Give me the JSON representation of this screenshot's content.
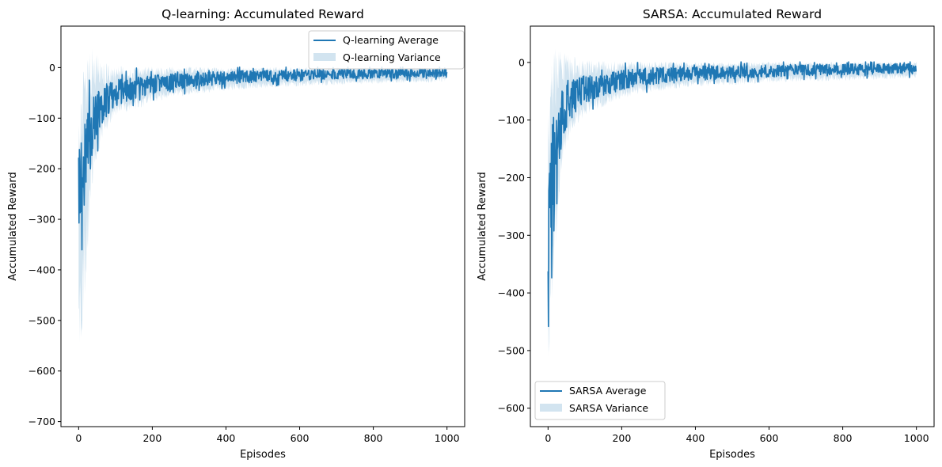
{
  "chart_data": [
    {
      "type": "line",
      "title": "Q-learning: Accumulated Reward",
      "xlabel": "Episodes",
      "ylabel": "Accumulated Reward",
      "xlim": [
        -48,
        1048
      ],
      "ylim": [
        -710,
        82
      ],
      "xticks": [
        0,
        200,
        400,
        600,
        800,
        1000
      ],
      "yticks": [
        0,
        -100,
        -200,
        -300,
        -400,
        -500,
        -600,
        -700
      ],
      "legend_position": "upper right",
      "color": "#1f77b4",
      "band_color": "#1f77b4",
      "series": [
        {
          "name": "Q-learning Average",
          "x": [
            0,
            5,
            10,
            15,
            20,
            25,
            30,
            35,
            40,
            50,
            60,
            70,
            80,
            90,
            100,
            125,
            150,
            175,
            200,
            250,
            300,
            350,
            400,
            450,
            500,
            550,
            600,
            650,
            700,
            750,
            800,
            850,
            900,
            950,
            1000
          ],
          "y": [
            -320,
            -270,
            -240,
            -210,
            -190,
            -170,
            -150,
            -130,
            -110,
            -95,
            -80,
            -70,
            -62,
            -55,
            -50,
            -45,
            -40,
            -36,
            -33,
            -28,
            -25,
            -22,
            -20,
            -18,
            -17,
            -16,
            -15,
            -14,
            -13,
            -13,
            -12,
            -12,
            -11,
            -11,
            -10
          ],
          "band_low": [
            -630,
            -560,
            -520,
            -470,
            -420,
            -360,
            -300,
            -260,
            -210,
            -180,
            -150,
            -135,
            -120,
            -110,
            -100,
            -92,
            -85,
            -78,
            -70,
            -60,
            -55,
            -50,
            -46,
            -44,
            -42,
            -40,
            -38,
            -36,
            -35,
            -34,
            -33,
            -32,
            -31,
            -30,
            -28
          ],
          "band_high": [
            -120,
            -50,
            -10,
            15,
            30,
            35,
            40,
            40,
            35,
            25,
            15,
            10,
            8,
            5,
            3,
            3,
            2,
            2,
            2,
            2,
            2,
            1,
            1,
            1,
            1,
            1,
            1,
            1,
            1,
            1,
            1,
            1,
            1,
            1,
            1
          ]
        },
        {
          "name": "Q-learning Variance"
        }
      ]
    },
    {
      "type": "line",
      "title": "SARSA: Accumulated Reward",
      "xlabel": "Episodes",
      "ylabel": "Accumulated Reward",
      "xlim": [
        -48,
        1048
      ],
      "ylim": [
        -632,
        63
      ],
      "xticks": [
        0,
        200,
        400,
        600,
        800,
        1000
      ],
      "yticks": [
        0,
        -100,
        -200,
        -300,
        -400,
        -500,
        -600
      ],
      "legend_position": "lower left",
      "color": "#1f77b4",
      "band_color": "#1f77b4",
      "series": [
        {
          "name": "SARSA Average",
          "x": [
            0,
            5,
            10,
            15,
            20,
            25,
            30,
            35,
            40,
            50,
            60,
            70,
            80,
            90,
            100,
            125,
            150,
            175,
            200,
            250,
            300,
            350,
            400,
            450,
            500,
            550,
            600,
            650,
            700,
            750,
            800,
            850,
            900,
            950,
            1000
          ],
          "y": [
            -330,
            -250,
            -210,
            -180,
            -160,
            -140,
            -120,
            -100,
            -90,
            -78,
            -68,
            -60,
            -54,
            -50,
            -46,
            -42,
            -38,
            -34,
            -31,
            -26,
            -23,
            -21,
            -19,
            -18,
            -17,
            -16,
            -15,
            -14,
            -13,
            -13,
            -12,
            -12,
            -11,
            -11,
            -11
          ],
          "band_low": [
            -560,
            -480,
            -420,
            -380,
            -340,
            -300,
            -250,
            -210,
            -180,
            -150,
            -130,
            -118,
            -108,
            -100,
            -92,
            -85,
            -78,
            -70,
            -63,
            -55,
            -50,
            -46,
            -43,
            -41,
            -40,
            -38,
            -36,
            -35,
            -34,
            -33,
            -32,
            -31,
            -30,
            -29,
            -28
          ],
          "band_high": [
            -80,
            -20,
            10,
            20,
            25,
            25,
            22,
            20,
            18,
            15,
            12,
            10,
            8,
            6,
            5,
            4,
            3,
            3,
            2,
            2,
            2,
            1,
            1,
            1,
            1,
            1,
            1,
            1,
            1,
            1,
            1,
            1,
            1,
            1,
            1
          ]
        },
        {
          "name": "SARSA Variance"
        }
      ]
    }
  ]
}
